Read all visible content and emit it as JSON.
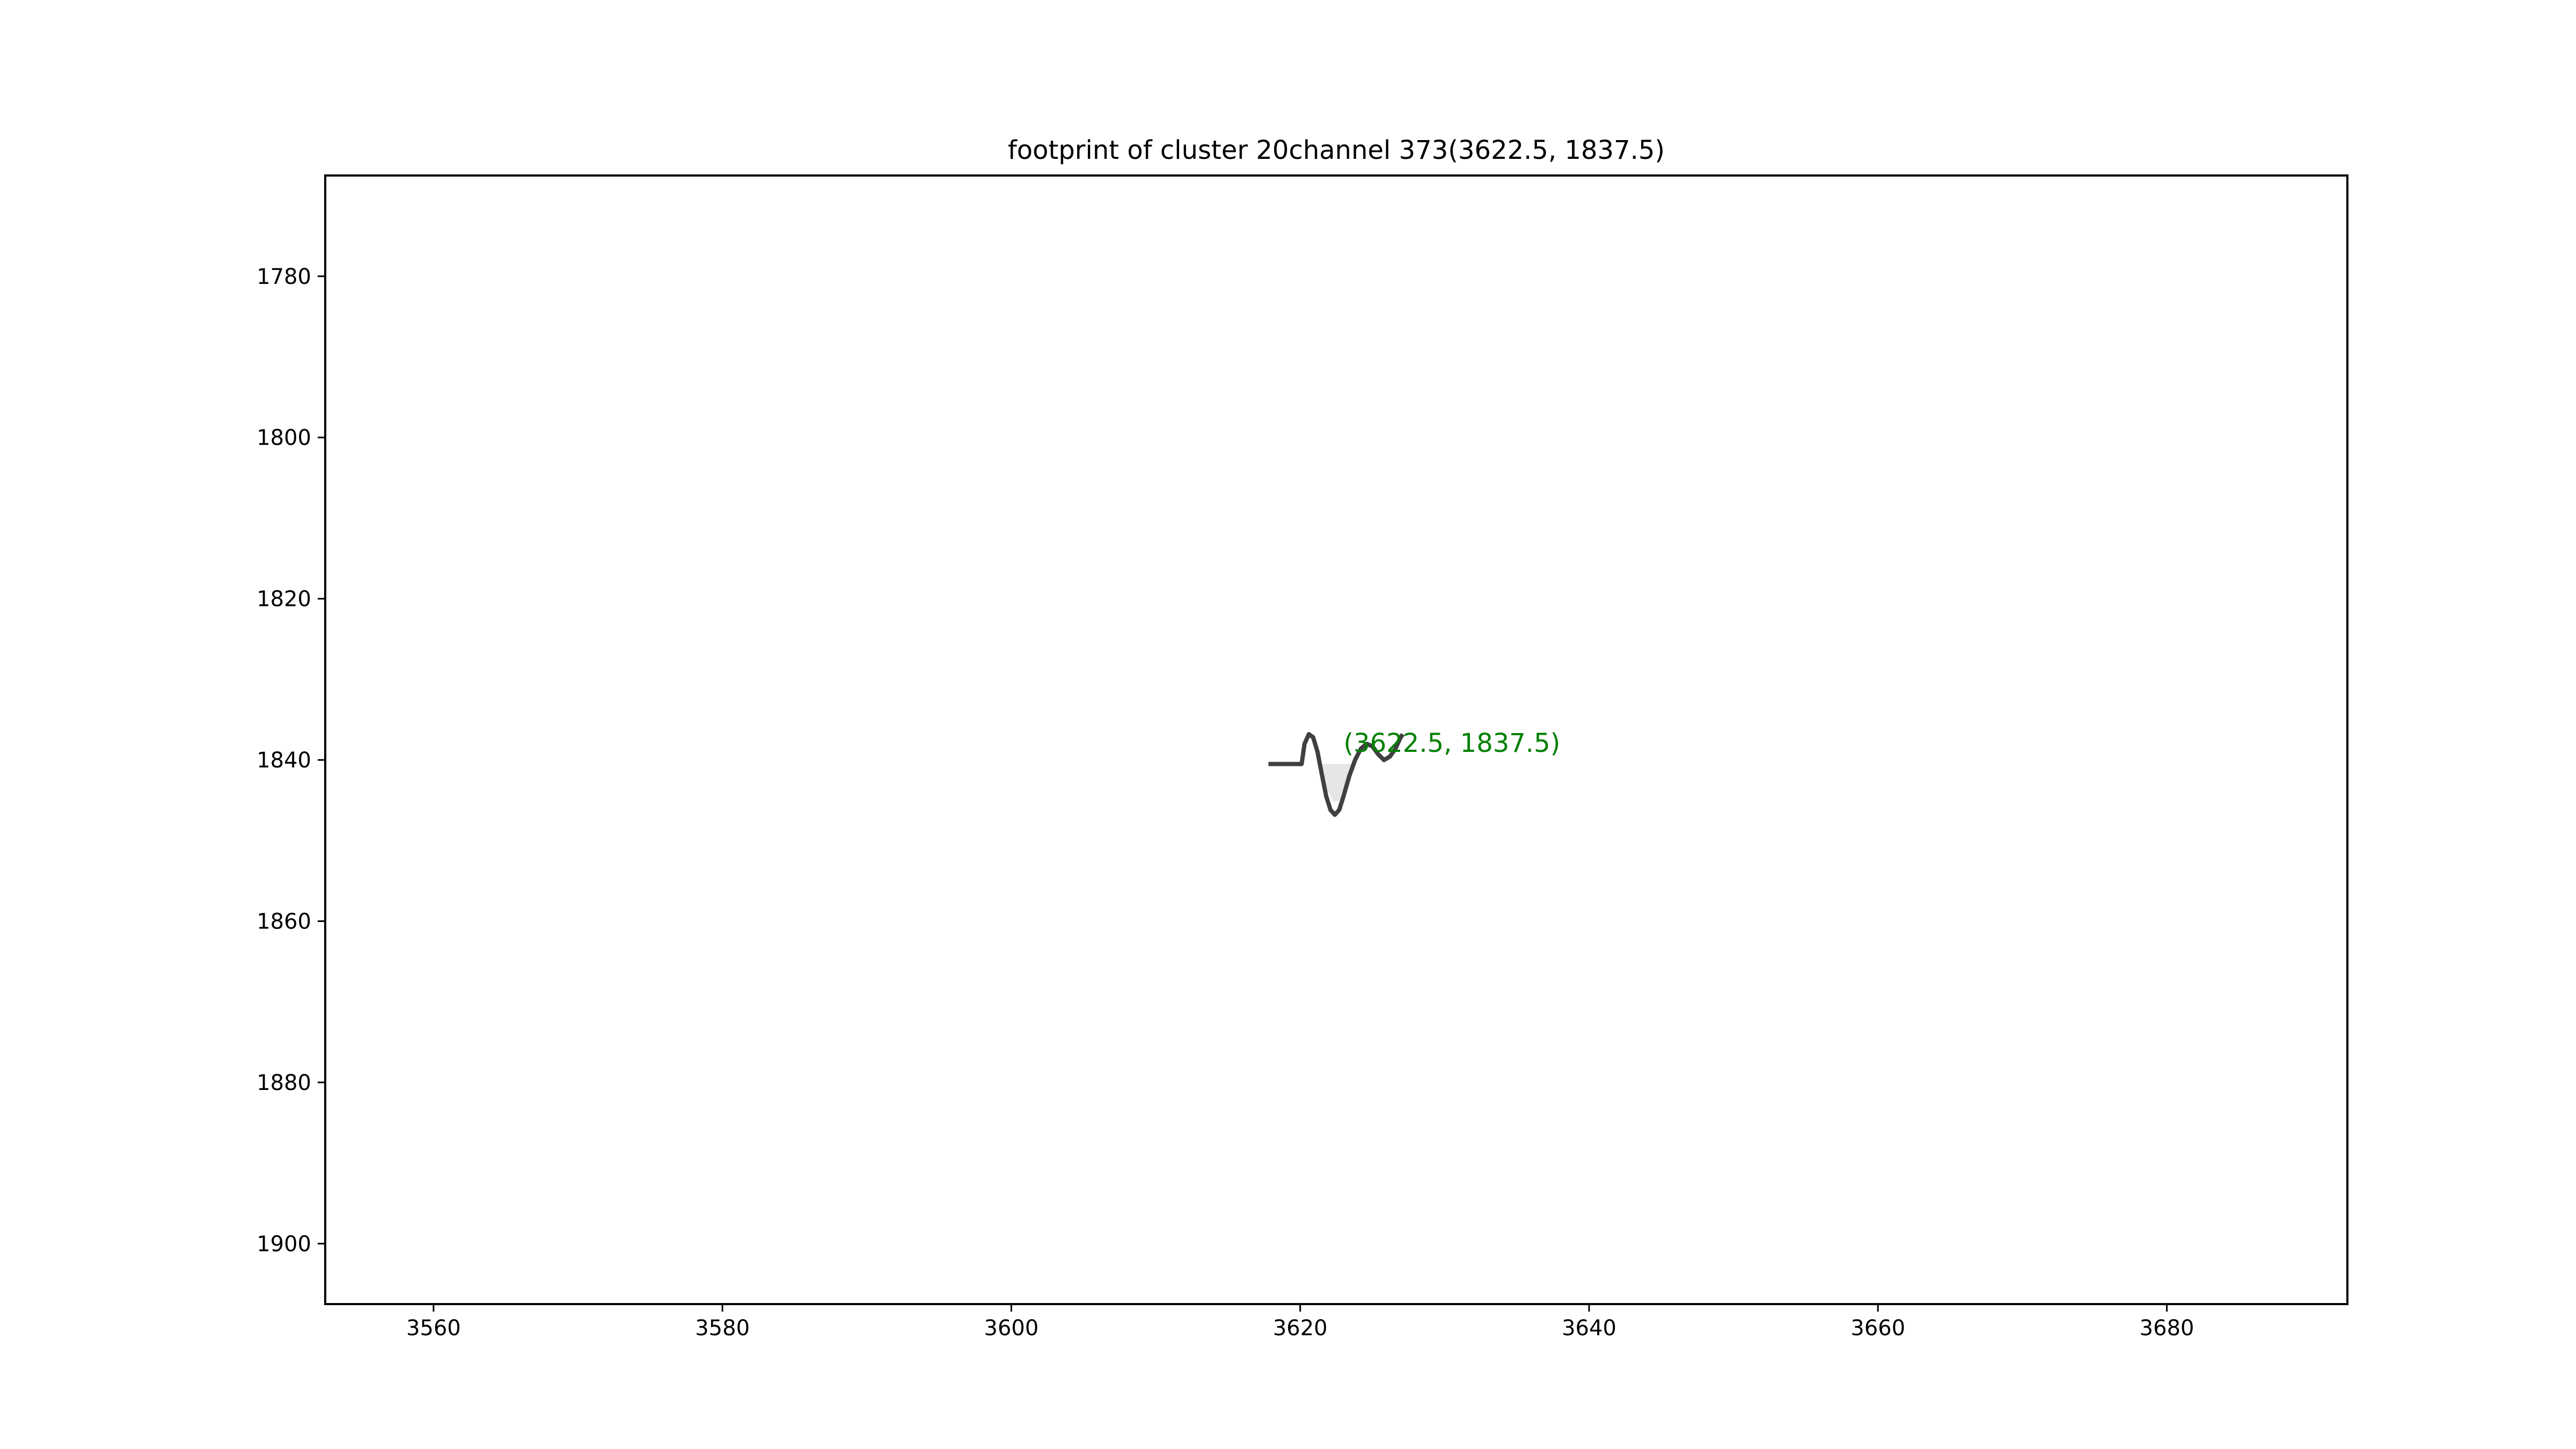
{
  "chart_data": {
    "type": "line",
    "title": "footprint of cluster 20channel 373(3622.5, 1837.5)",
    "xlabel": "",
    "ylabel": "",
    "xlim": [
      3552.5,
      3692.5
    ],
    "ylim": [
      1907.5,
      1767.5
    ],
    "y_inverted": true,
    "grid": false,
    "xticks": [
      3560,
      3580,
      3600,
      3620,
      3640,
      3660,
      3680
    ],
    "yticks": [
      1780,
      1800,
      1820,
      1840,
      1860,
      1880,
      1900
    ],
    "series": [
      {
        "color": "#404040",
        "x": [
          3617.8,
          3618.3,
          3618.8,
          3619.3,
          3619.8,
          3620.1,
          3620.3,
          3620.6,
          3620.9,
          3621.2,
          3621.5,
          3621.8,
          3622.1,
          3622.4,
          3622.7,
          3623.0,
          3623.4,
          3623.8,
          3624.2,
          3624.6,
          3625.0,
          3625.4,
          3625.8,
          3626.2,
          3626.6,
          3626.9,
          3627.1
        ],
        "y": [
          1840.5,
          1840.5,
          1840.5,
          1840.5,
          1840.5,
          1840.5,
          1838.0,
          1836.8,
          1837.2,
          1839.0,
          1841.8,
          1844.5,
          1846.2,
          1846.8,
          1846.2,
          1844.5,
          1842.0,
          1840.0,
          1838.6,
          1838.0,
          1838.3,
          1839.3,
          1840.0,
          1839.6,
          1838.6,
          1837.4,
          1836.8
        ]
      }
    ],
    "shaded_region": {
      "color": "#e6e6e6",
      "x": [
        3621.3,
        3621.8,
        3622.3,
        3622.8,
        3623.3,
        3623.8
      ],
      "y_low": [
        1840.5,
        1840.5,
        1840.5,
        1840.5,
        1840.5,
        1840.5
      ],
      "y_high": [
        1841.0,
        1843.5,
        1845.2,
        1845.0,
        1843.0,
        1840.8
      ]
    },
    "annotations": [
      {
        "text": "(3622.5, 1837.5)",
        "x": 3623.0,
        "y": 1839.0,
        "color": "#008000"
      }
    ]
  }
}
